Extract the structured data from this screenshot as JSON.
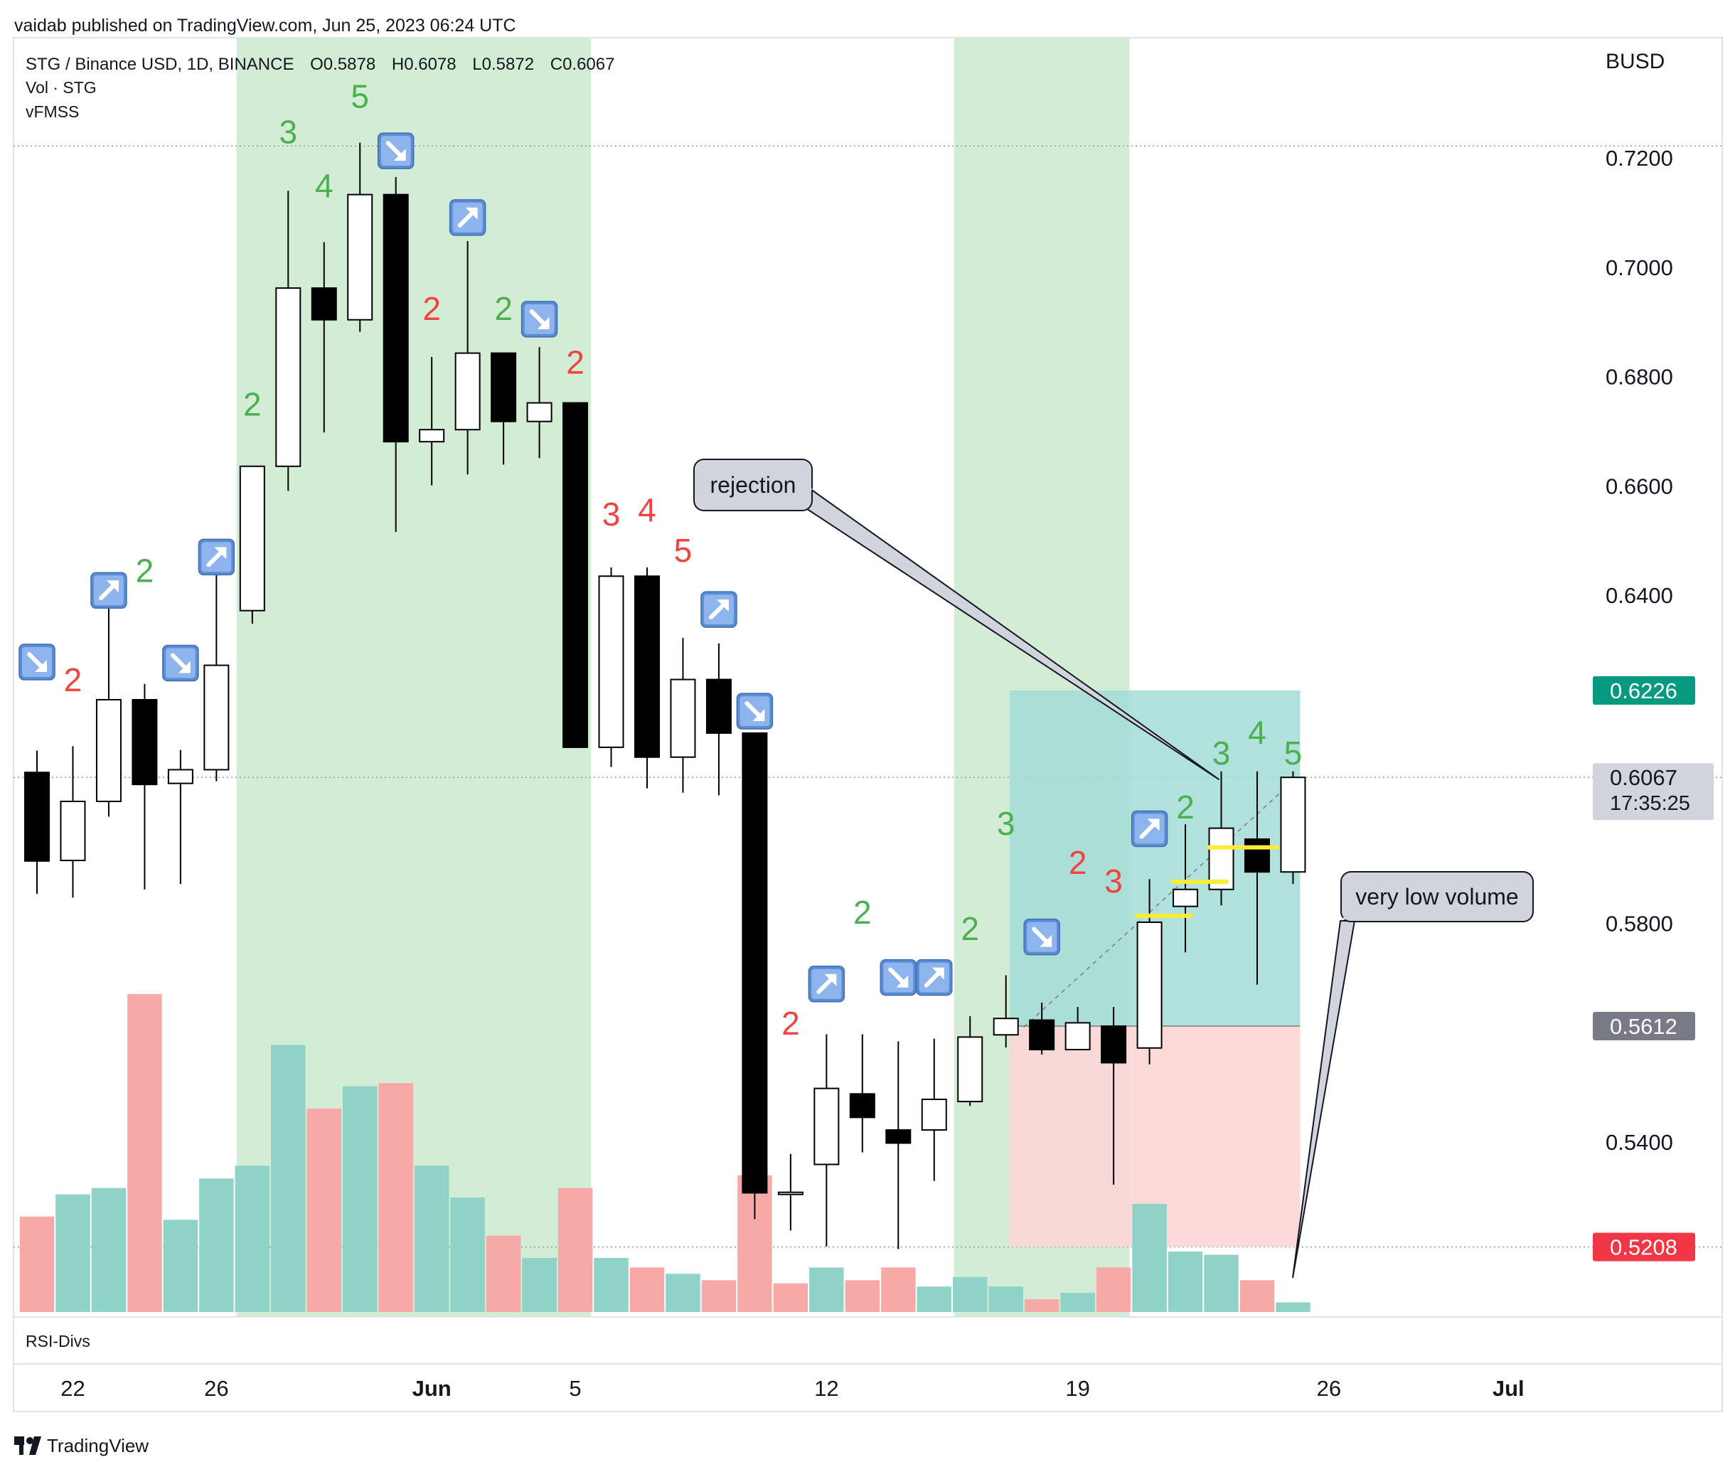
{
  "header": {
    "published": "vaidab published on TradingView.com, Jun 25, 2023 06:24 UTC"
  },
  "legend": {
    "symbol": "STG / Binance USD, 1D, BINANCE",
    "open": "O0.5878",
    "high": "H0.6078",
    "low": "L0.5872",
    "close": "C0.6067",
    "volume": "Vol · STG",
    "indicator": "vFMSS"
  },
  "currency": "BUSD",
  "rsi_label": "RSI-Divs",
  "footer": {
    "brand": "TradingView"
  },
  "colors": {
    "up_body": "#ffffff",
    "down_body": "#000000",
    "highlight": "#d3ecd4",
    "vol_up": "#8fd3c8",
    "vol_down": "#f7a9a7",
    "count_green": "#4caf50",
    "count_red": "#f0453f",
    "target_zone": "#a3dcd6",
    "stop_zone": "#fcd6d6",
    "last_price_bg": "#d1d4dc",
    "target_badge": "#089981",
    "stop_badge": "#f23645",
    "entry_badge": "#787b86"
  },
  "price_badges": {
    "target": "0.6226",
    "last": "0.6067",
    "countdown": "17:35:25",
    "entry": "0.5612",
    "stop": "0.5208"
  },
  "annotations": {
    "rejection": "rejection",
    "low_volume": "very low volume"
  },
  "chart_data": {
    "type": "candlestick",
    "symbol": "STG / Binance USD",
    "interval": "1D",
    "y_ticks": [
      "0.7200",
      "0.7000",
      "0.6800",
      "0.6600",
      "0.6400",
      "0.5800",
      "0.5400"
    ],
    "y_tick_values": [
      0.72,
      0.7,
      0.68,
      0.66,
      0.64,
      0.58,
      0.54
    ],
    "ylim": [
      0.508,
      0.742
    ],
    "x_ticks": [
      {
        "label": "22",
        "index": 1
      },
      {
        "label": "26",
        "index": 5
      },
      {
        "label": "Jun",
        "index": 11
      },
      {
        "label": "5",
        "index": 15
      },
      {
        "label": "12",
        "index": 22
      },
      {
        "label": "19",
        "index": 29
      },
      {
        "label": "26",
        "index": 36
      },
      {
        "label": "Jul",
        "index": 41
      }
    ],
    "candles": [
      {
        "o": 0.6076,
        "h": 0.6116,
        "l": 0.5854,
        "c": 0.5914
      },
      {
        "o": 0.5915,
        "h": 0.6124,
        "l": 0.5847,
        "c": 0.6023
      },
      {
        "o": 0.6023,
        "h": 0.6392,
        "l": 0.5995,
        "c": 0.6209
      },
      {
        "o": 0.6209,
        "h": 0.6238,
        "l": 0.5862,
        "c": 0.6054
      },
      {
        "o": 0.6056,
        "h": 0.6117,
        "l": 0.5872,
        "c": 0.6081
      },
      {
        "o": 0.6081,
        "h": 0.6457,
        "l": 0.606,
        "c": 0.6272
      },
      {
        "o": 0.6372,
        "h": 0.6617,
        "l": 0.6348,
        "c": 0.6636
      },
      {
        "o": 0.6636,
        "h": 0.714,
        "l": 0.6591,
        "c": 0.6962
      },
      {
        "o": 0.6962,
        "h": 0.7046,
        "l": 0.6698,
        "c": 0.6904
      },
      {
        "o": 0.6904,
        "h": 0.7228,
        "l": 0.6882,
        "c": 0.7133
      },
      {
        "o": 0.7133,
        "h": 0.7165,
        "l": 0.6516,
        "c": 0.6681
      },
      {
        "o": 0.6681,
        "h": 0.6836,
        "l": 0.6601,
        "c": 0.6703
      },
      {
        "o": 0.6703,
        "h": 0.7048,
        "l": 0.6621,
        "c": 0.6843
      },
      {
        "o": 0.6843,
        "h": 0.6844,
        "l": 0.6639,
        "c": 0.6718
      },
      {
        "o": 0.6718,
        "h": 0.6854,
        "l": 0.6651,
        "c": 0.6752
      },
      {
        "o": 0.6752,
        "h": 0.6752,
        "l": 0.6122,
        "c": 0.6122
      },
      {
        "o": 0.6122,
        "h": 0.6451,
        "l": 0.6086,
        "c": 0.6435
      },
      {
        "o": 0.6435,
        "h": 0.6451,
        "l": 0.6047,
        "c": 0.6104
      },
      {
        "o": 0.6104,
        "h": 0.6322,
        "l": 0.6039,
        "c": 0.6246
      },
      {
        "o": 0.6246,
        "h": 0.6312,
        "l": 0.6034,
        "c": 0.6148
      },
      {
        "o": 0.6148,
        "h": 0.6148,
        "l": 0.5259,
        "c": 0.5307
      },
      {
        "o": 0.5305,
        "h": 0.5378,
        "l": 0.5238,
        "c": 0.5308
      },
      {
        "o": 0.5359,
        "h": 0.5597,
        "l": 0.5209,
        "c": 0.5498
      },
      {
        "o": 0.5488,
        "h": 0.5597,
        "l": 0.5381,
        "c": 0.5445
      },
      {
        "o": 0.5422,
        "h": 0.5584,
        "l": 0.5204,
        "c": 0.5398
      },
      {
        "o": 0.5422,
        "h": 0.5589,
        "l": 0.5329,
        "c": 0.5478
      },
      {
        "o": 0.5474,
        "h": 0.563,
        "l": 0.5466,
        "c": 0.5592
      },
      {
        "o": 0.5596,
        "h": 0.5705,
        "l": 0.5573,
        "c": 0.5626
      },
      {
        "o": 0.5623,
        "h": 0.5655,
        "l": 0.556,
        "c": 0.5569
      },
      {
        "o": 0.5569,
        "h": 0.5647,
        "l": 0.557,
        "c": 0.5618
      },
      {
        "o": 0.5612,
        "h": 0.5647,
        "l": 0.5322,
        "c": 0.5545
      },
      {
        "o": 0.5572,
        "h": 0.5881,
        "l": 0.5542,
        "c": 0.5802
      },
      {
        "o": 0.5831,
        "h": 0.5981,
        "l": 0.5747,
        "c": 0.5862
      },
      {
        "o": 0.5862,
        "h": 0.6078,
        "l": 0.5833,
        "c": 0.5974
      },
      {
        "o": 0.5954,
        "h": 0.6078,
        "l": 0.5688,
        "c": 0.5894
      },
      {
        "o": 0.5894,
        "h": 0.6078,
        "l": 0.5872,
        "c": 0.6067
      }
    ],
    "volume": [
      {
        "v": 0.3,
        "up": false
      },
      {
        "v": 0.37,
        "up": true
      },
      {
        "v": 0.39,
        "up": true
      },
      {
        "v": 1.0,
        "up": false
      },
      {
        "v": 0.29,
        "up": true
      },
      {
        "v": 0.42,
        "up": true
      },
      {
        "v": 0.46,
        "up": true
      },
      {
        "v": 0.84,
        "up": true
      },
      {
        "v": 0.64,
        "up": false
      },
      {
        "v": 0.71,
        "up": true
      },
      {
        "v": 0.72,
        "up": false
      },
      {
        "v": 0.46,
        "up": true
      },
      {
        "v": 0.36,
        "up": true
      },
      {
        "v": 0.24,
        "up": false
      },
      {
        "v": 0.17,
        "up": true
      },
      {
        "v": 0.39,
        "up": false
      },
      {
        "v": 0.17,
        "up": true
      },
      {
        "v": 0.14,
        "up": false
      },
      {
        "v": 0.12,
        "up": true
      },
      {
        "v": 0.1,
        "up": false
      },
      {
        "v": 0.43,
        "up": false
      },
      {
        "v": 0.09,
        "up": false
      },
      {
        "v": 0.14,
        "up": true
      },
      {
        "v": 0.1,
        "up": false
      },
      {
        "v": 0.14,
        "up": false
      },
      {
        "v": 0.08,
        "up": true
      },
      {
        "v": 0.11,
        "up": true
      },
      {
        "v": 0.08,
        "up": true
      },
      {
        "v": 0.04,
        "up": false
      },
      {
        "v": 0.06,
        "up": true
      },
      {
        "v": 0.14,
        "up": false
      },
      {
        "v": 0.34,
        "up": true
      },
      {
        "v": 0.19,
        "up": true
      },
      {
        "v": 0.18,
        "up": true
      },
      {
        "v": 0.1,
        "up": false
      },
      {
        "v": 0.03,
        "up": true
      }
    ],
    "highlight_ranges": [
      [
        6,
        15
      ],
      [
        26,
        30
      ]
    ],
    "counts": [
      {
        "i": 1,
        "label": "2",
        "color": "red",
        "price": 0.6248
      },
      {
        "i": 3,
        "label": "2",
        "color": "green",
        "price": 0.6448
      },
      {
        "i": 6,
        "label": "2",
        "color": "green",
        "price": 0.6752
      },
      {
        "i": 7,
        "label": "3",
        "color": "green",
        "price": 0.725
      },
      {
        "i": 8,
        "label": "4",
        "color": "green",
        "price": 0.7152
      },
      {
        "i": 9,
        "label": "5",
        "color": "green",
        "price": 0.7315
      },
      {
        "i": 11,
        "label": "2",
        "color": "red",
        "price": 0.6927
      },
      {
        "i": 13,
        "label": "2",
        "color": "green",
        "price": 0.6927
      },
      {
        "i": 15,
        "label": "2",
        "color": "red",
        "price": 0.6829
      },
      {
        "i": 16,
        "label": "3",
        "color": "red",
        "price": 0.6551
      },
      {
        "i": 17,
        "label": "4",
        "color": "red",
        "price": 0.6559
      },
      {
        "i": 18,
        "label": "5",
        "color": "red",
        "price": 0.6485
      },
      {
        "i": 21,
        "label": "2",
        "color": "red",
        "price": 0.562
      },
      {
        "i": 23,
        "label": "2",
        "color": "green",
        "price": 0.5823
      },
      {
        "i": 26,
        "label": "2",
        "color": "green",
        "price": 0.5793
      },
      {
        "i": 27,
        "label": "3",
        "color": "green",
        "price": 0.5985
      },
      {
        "i": 29,
        "label": "2",
        "color": "red",
        "price": 0.5914
      },
      {
        "i": 30,
        "label": "3",
        "color": "red",
        "price": 0.588
      },
      {
        "i": 32,
        "label": "2",
        "color": "green",
        "price": 0.6015
      },
      {
        "i": 33,
        "label": "3",
        "color": "green",
        "price": 0.6114
      },
      {
        "i": 34,
        "label": "4",
        "color": "green",
        "price": 0.6152
      },
      {
        "i": 35,
        "label": "5",
        "color": "green",
        "price": 0.6114
      }
    ],
    "arrows": [
      {
        "i": 0,
        "dir": "down",
        "price": 0.6278
      },
      {
        "i": 2,
        "dir": "up",
        "price": 0.6409
      },
      {
        "i": 4,
        "dir": "down",
        "price": 0.6276
      },
      {
        "i": 5,
        "dir": "up",
        "price": 0.647
      },
      {
        "i": 10,
        "dir": "down",
        "price": 0.7213
      },
      {
        "i": 12,
        "dir": "up",
        "price": 0.7091
      },
      {
        "i": 14,
        "dir": "down",
        "price": 0.6905
      },
      {
        "i": 19,
        "dir": "up",
        "price": 0.6374
      },
      {
        "i": 20,
        "dir": "down",
        "price": 0.6188
      },
      {
        "i": 22,
        "dir": "up",
        "price": 0.5689
      },
      {
        "i": 24,
        "dir": "down",
        "price": 0.5701
      },
      {
        "i": 25,
        "dir": "up",
        "price": 0.5701
      },
      {
        "i": 28,
        "dir": "down",
        "price": 0.5775
      },
      {
        "i": 31,
        "dir": "up",
        "price": 0.5973
      }
    ],
    "position": {
      "start_index": 27,
      "end_index": 35,
      "entry": 0.5612,
      "target": 0.6226,
      "stop": 0.5208
    },
    "yellow_levels": [
      {
        "i0": 30.6,
        "i1": 32.2,
        "price": 0.5814
      },
      {
        "i0": 31.6,
        "i1": 33.2,
        "price": 0.5876
      },
      {
        "i0": 32.6,
        "i1": 34.6,
        "price": 0.5939
      }
    ]
  }
}
